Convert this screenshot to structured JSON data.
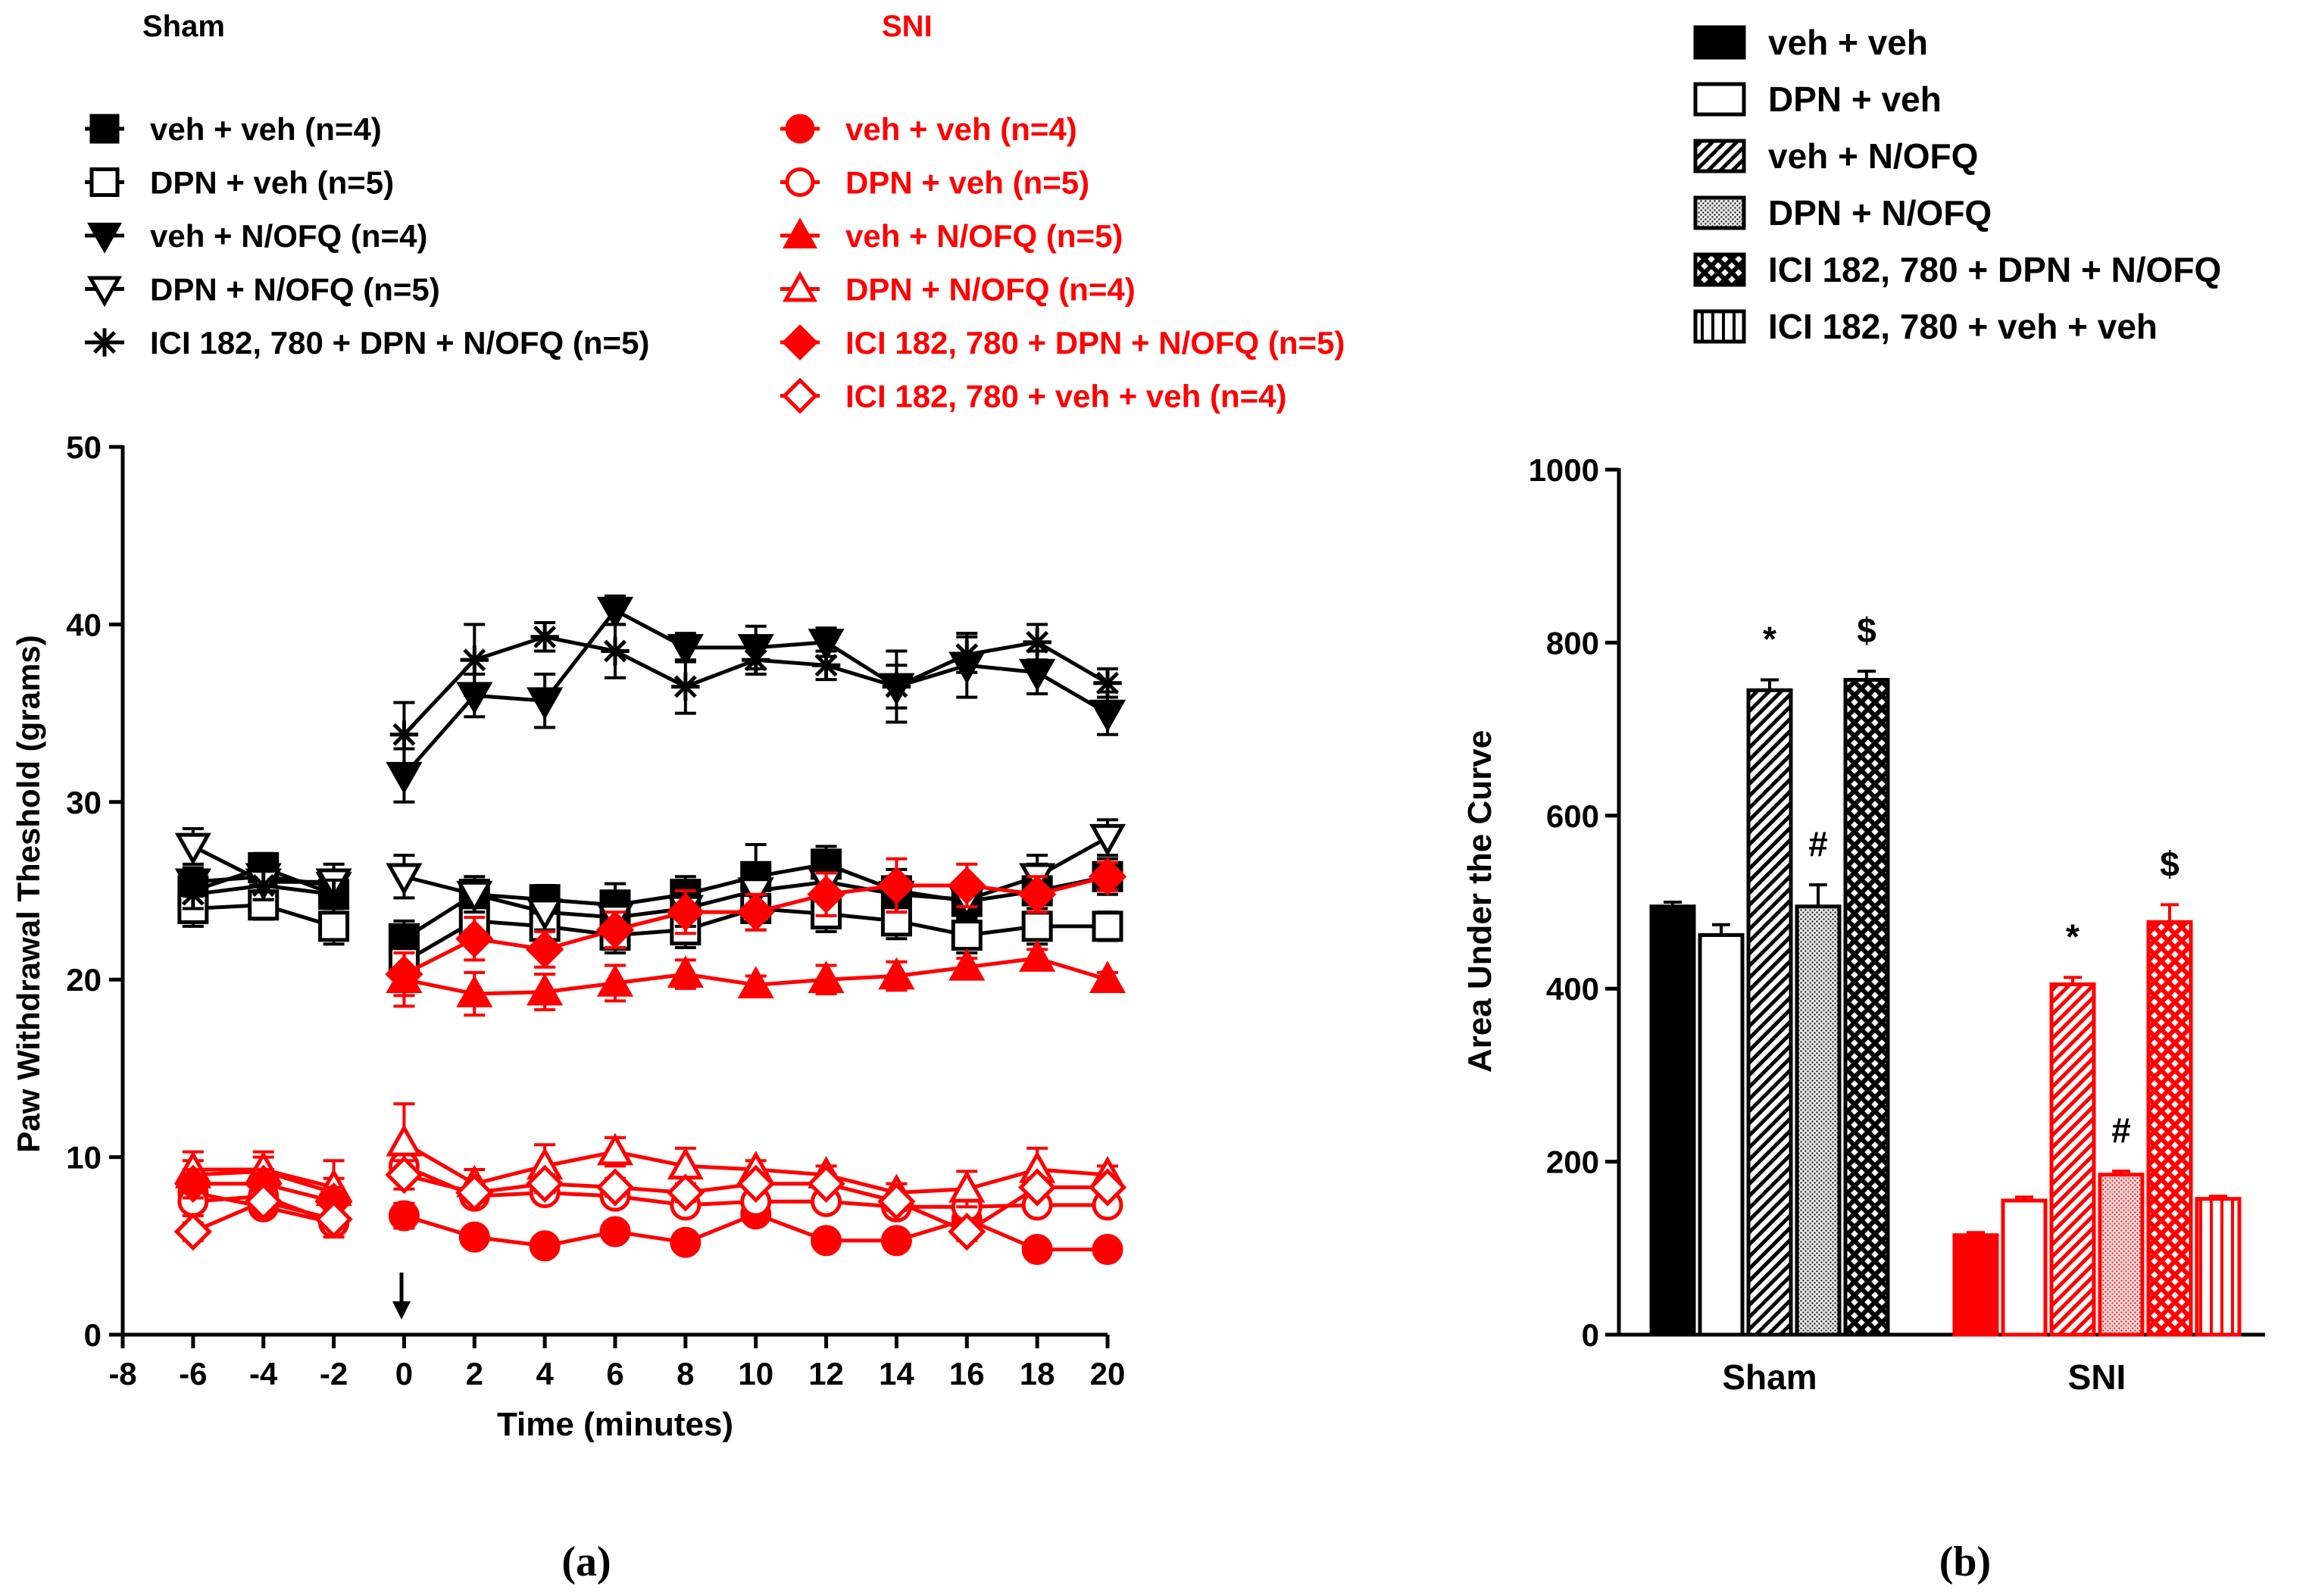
{
  "chart_data": [
    {
      "type": "line",
      "title": "",
      "panel_label": "(a)",
      "xlabel": "Time (minutes)",
      "ylabel": "Paw Withdrawal Theshold (grams)",
      "xlim": [
        -8,
        20
      ],
      "ylim": [
        0,
        50
      ],
      "xticks": [
        -8,
        -6,
        -4,
        -2,
        0,
        2,
        4,
        6,
        8,
        10,
        12,
        14,
        16,
        18,
        20
      ],
      "yticks": [
        0,
        10,
        20,
        30,
        40,
        50
      ],
      "annotation": "arrow at time 0",
      "legend_groups": [
        {
          "title": "Sham",
          "color": "#000000"
        },
        {
          "title": "SNI",
          "color": "#ff0000"
        }
      ],
      "x_pre": [
        -6,
        -4,
        -2
      ],
      "x_post": [
        0,
        2,
        4,
        6,
        8,
        10,
        12,
        14,
        16,
        18,
        20
      ],
      "series": [
        {
          "group": "Sham",
          "name": "veh + veh (n=4)",
          "marker": "square-filled",
          "color": "#000000",
          "pre": [
            25,
            26.3,
            24.8
          ],
          "post": [
            22.3,
            24.8,
            24.5,
            24.2,
            24.8,
            25.8,
            26.5,
            25,
            24.4,
            25,
            25.8
          ],
          "pre_err": [
            1,
            0.8,
            0.8
          ],
          "post_err": [
            1,
            0.8,
            0.8,
            1.2,
            1,
            1.8,
            1,
            1.2,
            1,
            1.5,
            1
          ]
        },
        {
          "group": "Sham",
          "name": "DPN + veh (n=5)",
          "marker": "square-open",
          "color": "#000000",
          "pre": [
            24,
            24.2,
            23
          ],
          "post": [
            21,
            23.3,
            23,
            22.5,
            22.8,
            24,
            23.7,
            23.3,
            22.5,
            23,
            23
          ],
          "pre_err": [
            1,
            0.8,
            1
          ],
          "post_err": [
            1,
            1,
            1,
            1,
            1,
            1.2,
            1,
            1,
            1,
            1,
            0.8
          ]
        },
        {
          "group": "Sham",
          "name": "veh + N/OFQ (n=4)",
          "marker": "triangle-down-filled",
          "color": "#000000",
          "pre": [
            25.5,
            25.8,
            25.3
          ],
          "post": [
            31.5,
            36,
            35.7,
            40.8,
            38.7,
            38.7,
            39,
            36.5,
            37.7,
            37.3,
            35
          ],
          "pre_err": [
            0.8,
            0.8,
            0.8
          ],
          "post_err": [
            1.5,
            1.2,
            1.5,
            0.8,
            0.8,
            1.2,
            0.8,
            2,
            1.8,
            1.2,
            1.2
          ]
        },
        {
          "group": "Sham",
          "name": "DPN + N/OFQ (n=5)",
          "marker": "triangle-down-open",
          "color": "#000000",
          "pre": [
            27.5,
            25.5,
            25.5
          ],
          "post": [
            25.8,
            24.8,
            23.8,
            23.5,
            24,
            25,
            25.5,
            24.8,
            24.5,
            25.8,
            28
          ],
          "pre_err": [
            1,
            1,
            1
          ],
          "post_err": [
            1.2,
            1,
            1,
            1,
            1,
            1,
            1,
            1,
            1,
            1.2,
            1
          ]
        },
        {
          "group": "Sham",
          "name": "ICI 182, 780 + DPN + N/OFQ (n=5)",
          "marker": "asterisk",
          "color": "#000000",
          "pre": [
            24.8,
            25.3,
            24.8
          ],
          "post": [
            33.8,
            38,
            39.3,
            38.5,
            36.5,
            38,
            37.7,
            36.5,
            38.3,
            39,
            36.7
          ],
          "pre_err": [
            0.8,
            0.8,
            0.8
          ],
          "post_err": [
            1.8,
            2,
            0.8,
            1.5,
            1.5,
            0.8,
            0.8,
            1.2,
            1,
            1,
            0.8
          ]
        },
        {
          "group": "SNI",
          "name": "veh + veh (n=4)",
          "marker": "circle-filled",
          "color": "#ff0000",
          "pre": [
            8,
            7.2,
            6.3
          ],
          "post": [
            6.7,
            5.5,
            5,
            5.8,
            5.2,
            6.8,
            5.3,
            5.3,
            6.5,
            4.8,
            4.8
          ],
          "pre_err": [
            0.5,
            0.5,
            0.5
          ],
          "post_err": [
            0.7,
            0.4,
            0.3,
            0.4,
            0.4,
            0.5,
            0.4,
            0.4,
            0.6,
            0.3,
            0.3
          ]
        },
        {
          "group": "SNI",
          "name": "DPN + veh (n=5)",
          "marker": "circle-open",
          "color": "#ff0000",
          "pre": [
            7.5,
            7.8,
            6.3
          ],
          "post": [
            9.5,
            7.8,
            8,
            7.8,
            7.3,
            7.5,
            7.5,
            7.2,
            7.2,
            7.3,
            7.3
          ],
          "pre_err": [
            0.8,
            0.8,
            0.8
          ],
          "post_err": [
            0.8,
            0.5,
            0.5,
            0.5,
            0.5,
            0.5,
            0.5,
            0.5,
            0.5,
            0.5,
            0.5
          ]
        },
        {
          "group": "SNI",
          "name": "veh + N/OFQ (n=5)",
          "marker": "triangle-up-filled",
          "color": "#ff0000",
          "pre": [
            9,
            9.2,
            8
          ],
          "post": [
            20,
            19.2,
            19.3,
            19.8,
            20.3,
            19.7,
            20,
            20.2,
            20.7,
            21.2,
            20
          ],
          "pre_err": [
            0.8,
            0.8,
            0.8
          ],
          "post_err": [
            1.5,
            1.2,
            1,
            1,
            0.8,
            0.5,
            0.8,
            0.8,
            0.5,
            0.5,
            0.4
          ]
        },
        {
          "group": "SNI",
          "name": "DPN + N/OFQ (n=4)",
          "marker": "triangle-up-open",
          "color": "#ff0000",
          "pre": [
            9.3,
            9.3,
            8.3
          ],
          "post": [
            10.8,
            8.5,
            9.5,
            10.3,
            9.5,
            9.3,
            9,
            8,
            8.2,
            9.3,
            9
          ],
          "pre_err": [
            1,
            1,
            1.5
          ],
          "post_err": [
            2.2,
            0.8,
            1.2,
            0.8,
            1,
            0.5,
            0.5,
            0.5,
            1,
            1.2,
            0.5
          ]
        },
        {
          "group": "SNI",
          "name": "ICI 182, 780 + DPN + N/OFQ (n=5)",
          "marker": "diamond-filled",
          "color": "#ff0000",
          "pre": [
            8.5,
            8.5,
            7.5
          ],
          "post": [
            20.3,
            22.3,
            21.7,
            22.8,
            23.8,
            23.8,
            24.8,
            25.3,
            25.3,
            24.8,
            25.8
          ],
          "pre_err": [
            0.8,
            0.8,
            0.8
          ],
          "post_err": [
            1.2,
            1.2,
            1,
            1,
            1.2,
            1,
            1.2,
            1.5,
            1.2,
            1,
            0.8
          ]
        },
        {
          "group": "SNI",
          "name": "ICI 182, 780 + veh + veh (n=4)",
          "marker": "diamond-open",
          "color": "#ff0000",
          "pre": [
            5.8,
            7.5,
            6.5
          ],
          "post": [
            9,
            8,
            8.5,
            8.3,
            8,
            8.5,
            8.5,
            7.5,
            5.8,
            8.3,
            8.3
          ],
          "pre_err": [
            0.5,
            0.5,
            0.5
          ],
          "post_err": [
            0.8,
            0.5,
            0.5,
            0.5,
            0.5,
            0.5,
            0.5,
            0.5,
            0.5,
            0.5,
            0.5
          ]
        }
      ]
    },
    {
      "type": "bar",
      "title": "",
      "panel_label": "(b)",
      "xlabel": "",
      "ylabel": "Area Under the Curve",
      "ylim": [
        0,
        1000
      ],
      "yticks": [
        0,
        200,
        400,
        600,
        800,
        1000
      ],
      "categories": [
        "Sham",
        "SNI"
      ],
      "group_colors": [
        "#000000",
        "#ff0000"
      ],
      "series": [
        {
          "name": "veh + veh",
          "pattern": "solid",
          "values": [
            495,
            115
          ],
          "errors": [
            5,
            3
          ],
          "marks": [
            "",
            ""
          ]
        },
        {
          "name": "DPN + veh",
          "pattern": "open",
          "values": [
            462,
            155
          ],
          "errors": [
            12,
            4
          ],
          "marks": [
            "",
            ""
          ]
        },
        {
          "name": "veh + N/OFQ",
          "pattern": "diagonal",
          "values": [
            745,
            405
          ],
          "errors": [
            12,
            8
          ],
          "marks": [
            "*",
            "*"
          ]
        },
        {
          "name": "DPN + N/OFQ",
          "pattern": "dots",
          "values": [
            495,
            185
          ],
          "errors": [
            25,
            4
          ],
          "marks": [
            "#",
            "#"
          ]
        },
        {
          "name": "ICI 182, 780 + DPN + N/OFQ",
          "pattern": "crosshatch",
          "values": [
            757,
            477
          ],
          "errors": [
            10,
            20
          ],
          "marks": [
            "$",
            "$"
          ]
        },
        {
          "name": "ICI 182, 780 + veh + veh",
          "pattern": "vertical",
          "values": [
            0,
            157
          ],
          "errors": [
            0,
            3
          ],
          "marks": [
            "",
            ""
          ]
        }
      ]
    }
  ]
}
